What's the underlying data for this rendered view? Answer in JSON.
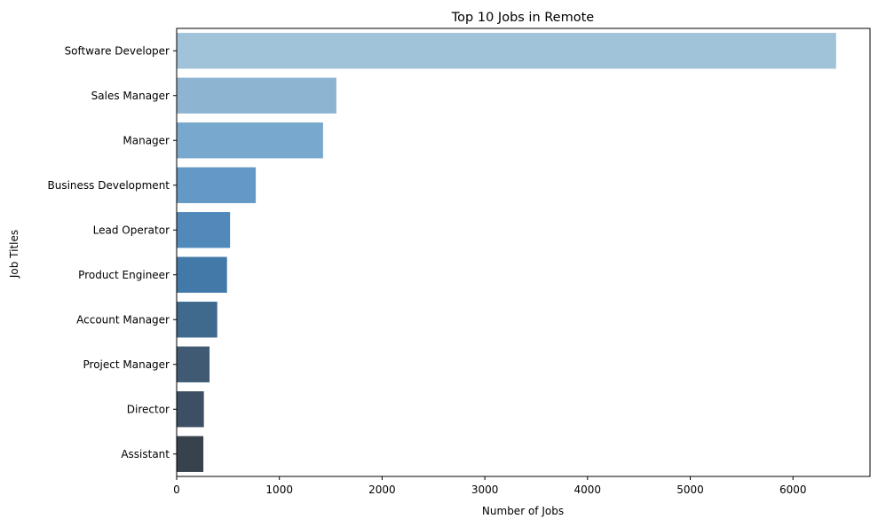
{
  "chart_data": {
    "type": "bar",
    "orientation": "horizontal",
    "title": "Top 10 Jobs in Remote",
    "xlabel": "Number of Jobs",
    "ylabel": "Job Titles",
    "categories": [
      "Software Developer",
      "Sales Manager",
      "Manager",
      "Business Development",
      "Lead Operator",
      "Product Engineer",
      "Account Manager",
      "Project Manager",
      "Director",
      "Assistant"
    ],
    "values": [
      6420,
      1555,
      1425,
      770,
      520,
      490,
      395,
      320,
      265,
      260
    ],
    "xlim": [
      0,
      6750
    ],
    "xticks": [
      "0",
      "1000",
      "2000",
      "3000",
      "4000",
      "5000",
      "6000"
    ],
    "grid": false,
    "legend": "none",
    "colors": [
      "#a0c3d9",
      "#8db5d2",
      "#78a8cd",
      "#6399c4",
      "#5189ba",
      "#4279a9",
      "#3f6a8e",
      "#405a74",
      "#3d4f64",
      "#37424d"
    ]
  }
}
